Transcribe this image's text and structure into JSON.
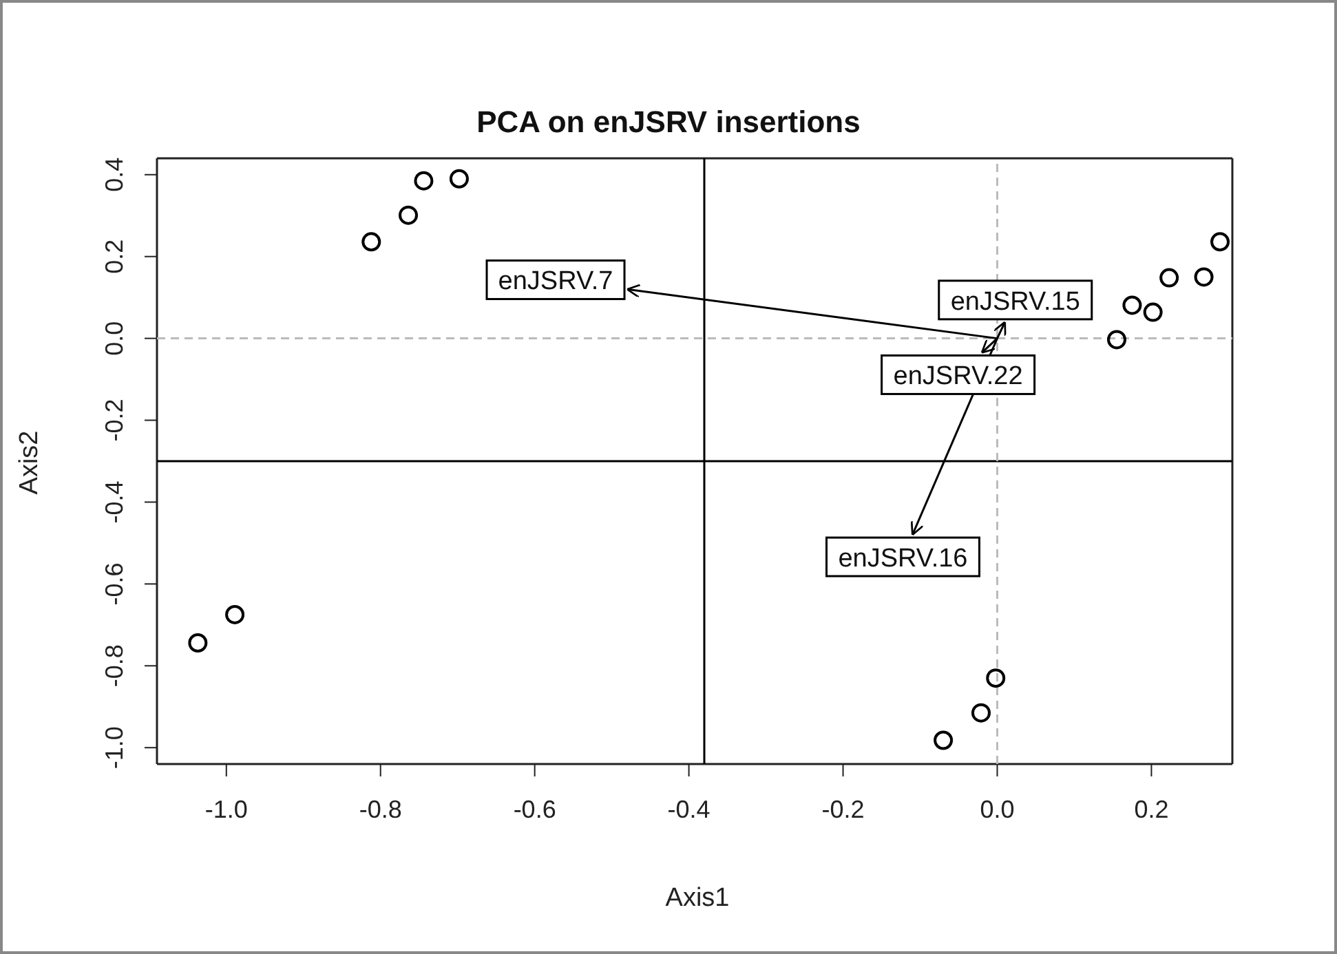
{
  "chart_data": {
    "type": "scatter",
    "title": "PCA on enJSRV insertions",
    "xlabel": "Axis1",
    "ylabel": "Axis2",
    "xlim": [
      -1.09,
      0.305
    ],
    "ylim": [
      -1.04,
      0.44
    ],
    "xticks": [
      {
        "value": -1.0,
        "label": "-1.0"
      },
      -0.8,
      -0.6,
      -0.4,
      -0.2,
      {
        "value": 0,
        "label": "0.0"
      },
      0.2
    ],
    "yticks": [
      {
        "value": -1.0,
        "label": "-1.0"
      },
      -0.8,
      -0.6,
      -0.4,
      -0.2,
      {
        "value": 0,
        "label": "0.0"
      },
      0.2,
      0.4
    ],
    "grid": false,
    "marker": "circle",
    "series": [
      {
        "type": "scatter",
        "color": "#000000",
        "x": [
          -0.812,
          -0.764,
          -0.744,
          -0.698,
          -0.989,
          -1.037,
          0.289,
          0.268,
          0.223,
          0.202,
          0.175,
          0.155,
          -0.002,
          -0.021,
          -0.07
        ],
        "values": [
          0.236,
          0.301,
          0.385,
          0.39,
          -0.675,
          -0.744,
          0.236,
          0.15,
          0.148,
          0.064,
          0.081,
          -0.003,
          -0.83,
          -0.915,
          -0.982
        ]
      },
      {
        "type": "line",
        "color": "#000000",
        "marker": "none",
        "x": [
          0,
          -0.48
        ],
        "values": [
          0,
          0.12
        ]
      },
      {
        "type": "line",
        "color": "#000000",
        "marker": "none",
        "x": [
          0,
          0.01
        ],
        "values": [
          0,
          0.04
        ]
      },
      {
        "type": "line",
        "color": "#000000",
        "marker": "none",
        "x": [
          0,
          -0.02
        ],
        "values": [
          0,
          -0.035
        ]
      },
      {
        "type": "line",
        "color": "#000000",
        "marker": "none",
        "x": [
          0,
          -0.11
        ],
        "values": [
          0,
          -0.48
        ]
      }
    ],
    "ref_lines": [
      {
        "axis": "x",
        "value": -0.38,
        "color": "#000000",
        "line_style": "solid"
      },
      {
        "axis": "y",
        "value": -0.3,
        "color": "#000000",
        "line_style": "solid"
      },
      {
        "axis": "x",
        "value": 0,
        "color": "#bbbbbb",
        "line_style": "dashed"
      },
      {
        "axis": "y",
        "value": 0,
        "color": "#bbbbbb",
        "line_style": "dashed"
      }
    ],
    "annotations": [
      {
        "text": "enJSRV.7",
        "x": -0.48,
        "y": 0.12
      },
      {
        "text": "enJSRV.15",
        "x": 0.01,
        "y": 0.04
      },
      {
        "text": "enJSRV.22",
        "x": -0.02,
        "y": -0.035
      },
      {
        "text": "enJSRV.16",
        "x": -0.11,
        "y": -0.48
      }
    ]
  }
}
